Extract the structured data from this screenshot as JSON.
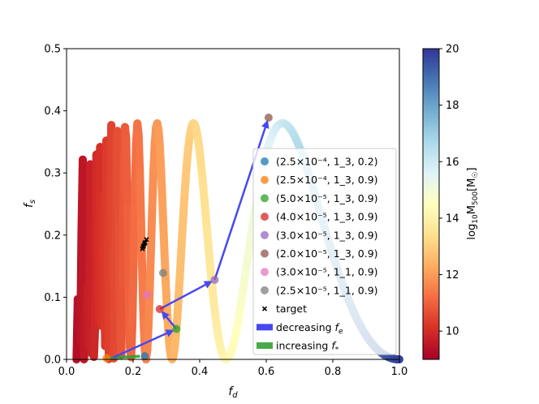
{
  "chart_data": {
    "type": "scatter",
    "xlabel": "f_d",
    "ylabel": "f_s",
    "xlim": [
      0,
      1
    ],
    "ylim": [
      0,
      0.5
    ],
    "xticks": [
      "0.0",
      "0.2",
      "0.4",
      "0.6",
      "0.8",
      "1.0"
    ],
    "yticks": [
      "0.0",
      "0.1",
      "0.2",
      "0.3",
      "0.4",
      "0.5"
    ],
    "colorbar": {
      "label": "log10 M500 [M☉]",
      "range": [
        9,
        20
      ],
      "ticks": [
        "10",
        "12",
        "14",
        "16",
        "18",
        "20"
      ],
      "colormap": "RdYlBu"
    },
    "curve": {
      "description_free": true,
      "x_start": 0.03,
      "x_end": 1.0,
      "peak_x": 0.48,
      "peak_y": 0.38,
      "log_mass_start": 9.3,
      "log_mass_end": 19.8
    },
    "series": [
      {
        "name": "(2.5×10⁻⁴, 1_3, 0.2)",
        "color": "#1f77b4",
        "x": [
          0.235
        ],
        "y": [
          0.005
        ]
      },
      {
        "name": "(2.5×10⁻⁴, 1_3, 0.9)",
        "color": "#ff7f0e",
        "x": [
          0.12
        ],
        "y": [
          0.002
        ]
      },
      {
        "name": "(5.0×10⁻⁵, 1_3, 0.9)",
        "color": "#2ca02c",
        "x": [
          0.33
        ],
        "y": [
          0.049
        ]
      },
      {
        "name": "(4.0×10⁻⁵, 1_3, 0.9)",
        "color": "#d62728",
        "x": [
          0.28
        ],
        "y": [
          0.081
        ]
      },
      {
        "name": "(3.0×10⁻⁵, 1_3, 0.9)",
        "color": "#9467bd",
        "x": [
          0.445
        ],
        "y": [
          0.128
        ]
      },
      {
        "name": "(2.0×10⁻⁵, 1_3, 0.9)",
        "color": "#8c564b",
        "x": [
          0.607
        ],
        "y": [
          0.389
        ]
      },
      {
        "name": "(3.0×10⁻⁵, 1_1, 0.9)",
        "color": "#e377c2",
        "x": [
          0.242
        ],
        "y": [
          0.104
        ]
      },
      {
        "name": "(2.5×10⁻⁵, 1_1, 0.9)",
        "color": "#7f7f7f",
        "x": [
          0.29
        ],
        "y": [
          0.139
        ]
      }
    ],
    "target": {
      "name": "target",
      "x": [
        0.228,
        0.232,
        0.236,
        0.24,
        0.234,
        0.23
      ],
      "y": [
        0.178,
        0.183,
        0.188,
        0.193,
        0.186,
        0.181
      ]
    },
    "arrows_decreasing_fe": {
      "name": "decreasing f_e",
      "color": "#3a3af0",
      "segments": [
        [
          [
            0.14,
            0.003
          ],
          [
            0.33,
            0.049
          ]
        ],
        [
          [
            0.33,
            0.049
          ],
          [
            0.28,
            0.081
          ]
        ],
        [
          [
            0.28,
            0.081
          ],
          [
            0.445,
            0.128
          ]
        ],
        [
          [
            0.445,
            0.128
          ],
          [
            0.607,
            0.389
          ]
        ]
      ]
    },
    "arrows_increasing_fstar": {
      "name": "increasing f*",
      "color": "#2ca02c",
      "segments": [
        [
          [
            0.12,
            0.002
          ],
          [
            0.235,
            0.005
          ]
        ]
      ]
    },
    "legend_position": "lower right"
  }
}
